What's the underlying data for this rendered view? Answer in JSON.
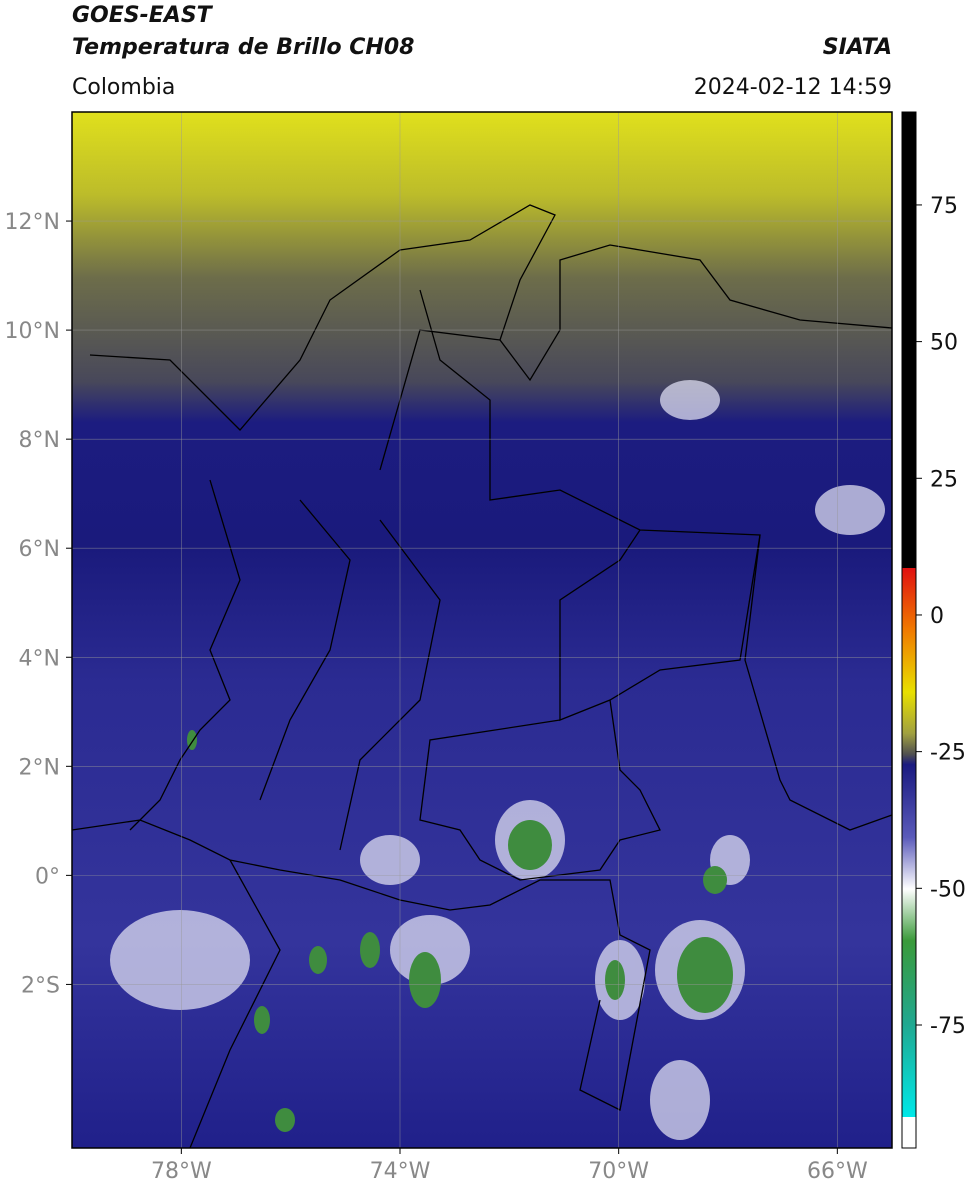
{
  "header": {
    "title": "GOES-EAST",
    "subtitle": "Temperatura de Brillo CH08",
    "source": "SIATA",
    "region": "Colombia",
    "datetime": "2024-02-12 14:59"
  },
  "map": {
    "lonlim": [
      -80,
      -65
    ],
    "latlim": [
      -5,
      14
    ],
    "lon_ticks": [
      {
        "value": -78,
        "label": "78°W"
      },
      {
        "value": -74,
        "label": "74°W"
      },
      {
        "value": -70,
        "label": "70°W"
      },
      {
        "value": -66,
        "label": "66°W"
      }
    ],
    "lat_ticks": [
      {
        "value": 12,
        "label": "12°N"
      },
      {
        "value": 10,
        "label": "10°N"
      },
      {
        "value": 8,
        "label": "8°N"
      },
      {
        "value": 6,
        "label": "6°N"
      },
      {
        "value": 4,
        "label": "4°N"
      },
      {
        "value": 2,
        "label": "2°N"
      },
      {
        "value": 0,
        "label": "0°"
      },
      {
        "value": -2,
        "label": "2°S"
      }
    ]
  },
  "colorbar": {
    "lim": [
      -97.5,
      92
    ],
    "ticks": [
      75,
      50,
      25,
      0,
      -25,
      -50,
      -75
    ]
  }
}
